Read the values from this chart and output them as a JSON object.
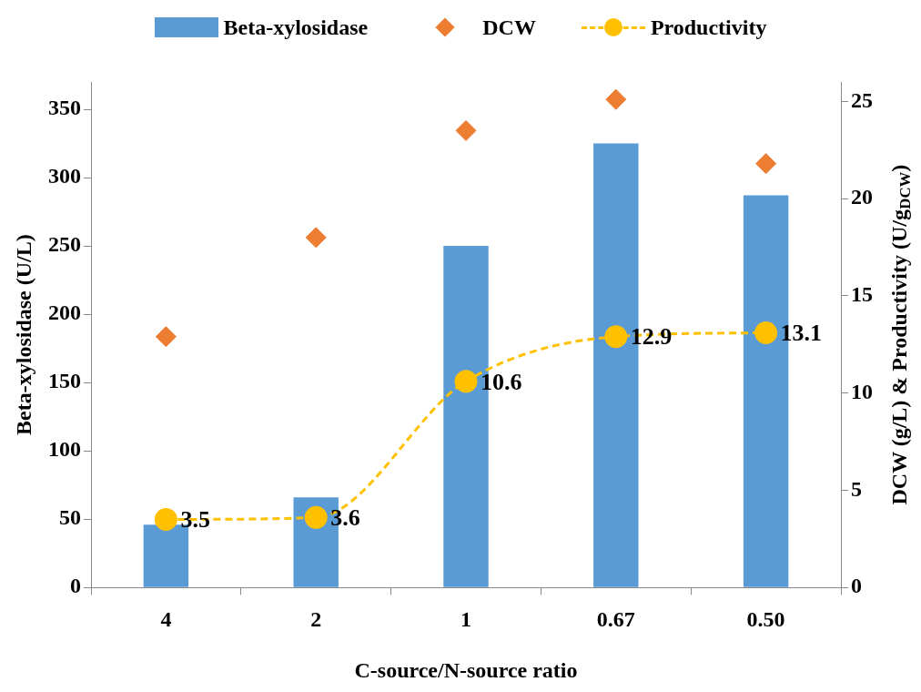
{
  "chart_data": {
    "type": "bar",
    "xlabel": "C-source/N-source ratio",
    "ylabel": "Beta-xylosidase (U/L)",
    "y2label": "DCW (g/L) & Productivity (U/g$_{DCW}$)",
    "categories": [
      "4",
      "2",
      "1",
      "0.67",
      "0.50"
    ],
    "series": [
      {
        "name": "Beta-xylosidase",
        "color": "#5b9bd5",
        "values": [
          46,
          66,
          250,
          325,
          287
        ]
      },
      {
        "name": "DCW",
        "type": "scatter",
        "axis": "y2",
        "marker": "diamond",
        "color": "#ed7d31",
        "values": [
          12.9,
          18.0,
          23.5,
          25.1,
          21.8
        ]
      },
      {
        "name": "Productivity",
        "type": "line",
        "axis": "y2",
        "marker": "circle",
        "line_style": "dashed",
        "color": "#ffc000",
        "values": [
          3.5,
          3.6,
          10.6,
          12.9,
          13.1
        ],
        "value_labels": [
          "3.5",
          "3.6",
          "10.6",
          "12.9",
          "13.1"
        ]
      }
    ],
    "ylim": [
      0,
      370
    ],
    "yticks": [
      0,
      50,
      100,
      150,
      200,
      250,
      300,
      350
    ],
    "y2lim": [
      0,
      26
    ],
    "y2ticks": [
      0,
      5,
      10,
      15,
      20,
      25
    ],
    "grid": false,
    "legend": "top"
  }
}
